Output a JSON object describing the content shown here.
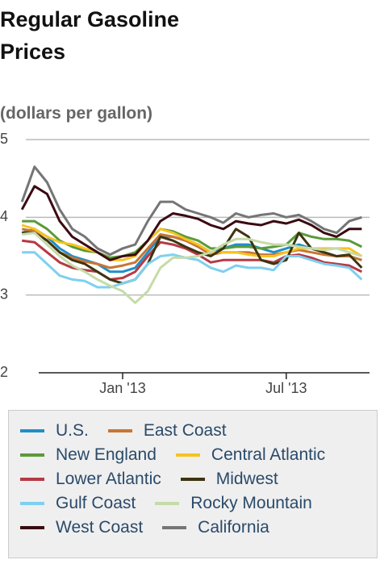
{
  "chart_data": {
    "type": "line",
    "title": "Regular Gasoline Prices",
    "subtitle": "(dollars per gallon)",
    "categories": [
      null,
      null,
      null,
      null,
      null,
      null,
      null,
      null,
      "Jan '13",
      null,
      null,
      null,
      null,
      null,
      null,
      null,
      null,
      null,
      null,
      null,
      null,
      "Jul '13",
      null,
      null,
      null,
      null,
      null,
      null
    ],
    "ylim": [
      2,
      5
    ],
    "yticks": [
      2,
      3,
      4,
      5
    ],
    "grid": true,
    "series": [
      {
        "name": "U.S.",
        "color": "#1f8fc8",
        "values": [
          3.8,
          3.85,
          3.75,
          3.6,
          3.5,
          3.45,
          3.4,
          3.3,
          3.3,
          3.35,
          3.55,
          3.75,
          3.75,
          3.7,
          3.65,
          3.55,
          3.6,
          3.65,
          3.65,
          3.6,
          3.55,
          3.6,
          3.65,
          3.6,
          3.55,
          3.5,
          3.5,
          3.45
        ]
      },
      {
        "name": "East Coast",
        "color": "#c87533",
        "values": [
          3.85,
          3.82,
          3.7,
          3.55,
          3.48,
          3.43,
          3.4,
          3.35,
          3.38,
          3.42,
          3.6,
          3.78,
          3.75,
          3.7,
          3.62,
          3.52,
          3.55,
          3.55,
          3.55,
          3.52,
          3.52,
          3.55,
          3.58,
          3.55,
          3.52,
          3.5,
          3.5,
          3.45
        ]
      },
      {
        "name": "New England",
        "color": "#5b9a3a",
        "values": [
          3.95,
          3.95,
          3.85,
          3.7,
          3.62,
          3.57,
          3.55,
          3.48,
          3.5,
          3.55,
          3.7,
          3.85,
          3.82,
          3.75,
          3.7,
          3.6,
          3.6,
          3.62,
          3.62,
          3.6,
          3.62,
          3.65,
          3.8,
          3.75,
          3.72,
          3.72,
          3.7,
          3.62
        ]
      },
      {
        "name": "Central Atlantic",
        "color": "#f6c320",
        "values": [
          3.9,
          3.85,
          3.75,
          3.68,
          3.65,
          3.6,
          3.55,
          3.45,
          3.45,
          3.5,
          3.7,
          3.85,
          3.8,
          3.72,
          3.65,
          3.55,
          3.55,
          3.55,
          3.52,
          3.5,
          3.5,
          3.55,
          3.6,
          3.6,
          3.6,
          3.6,
          3.6,
          3.5
        ]
      },
      {
        "name": "Lower Atlantic",
        "color": "#b53a45",
        "values": [
          3.7,
          3.68,
          3.55,
          3.42,
          3.35,
          3.32,
          3.3,
          3.2,
          3.22,
          3.3,
          3.5,
          3.68,
          3.65,
          3.6,
          3.52,
          3.42,
          3.45,
          3.45,
          3.45,
          3.45,
          3.42,
          3.5,
          3.52,
          3.48,
          3.42,
          3.4,
          3.38,
          3.3
        ]
      },
      {
        "name": "Midwest",
        "color": "#3d3411",
        "values": [
          3.8,
          3.8,
          3.7,
          3.55,
          3.45,
          3.4,
          3.3,
          3.2,
          3.15,
          3.2,
          3.4,
          3.75,
          3.7,
          3.62,
          3.55,
          3.5,
          3.6,
          3.85,
          3.75,
          3.45,
          3.4,
          3.45,
          3.8,
          3.6,
          3.55,
          3.5,
          3.52,
          3.35
        ]
      },
      {
        "name": "Gulf Coast",
        "color": "#7fd0f0",
        "values": [
          3.55,
          3.55,
          3.4,
          3.25,
          3.2,
          3.18,
          3.1,
          3.1,
          3.15,
          3.2,
          3.4,
          3.5,
          3.52,
          3.48,
          3.45,
          3.35,
          3.3,
          3.38,
          3.35,
          3.35,
          3.32,
          3.5,
          3.5,
          3.45,
          3.4,
          3.38,
          3.35,
          3.2
        ]
      },
      {
        "name": "Rocky Mountain",
        "color": "#c6dba8",
        "values": [
          3.78,
          3.8,
          3.65,
          3.5,
          3.38,
          3.3,
          3.2,
          3.12,
          3.05,
          2.9,
          3.05,
          3.35,
          3.48,
          3.48,
          3.5,
          3.55,
          3.65,
          3.72,
          3.72,
          3.68,
          3.65,
          3.65,
          3.62,
          3.6,
          3.58,
          3.6,
          3.55,
          3.5
        ]
      },
      {
        "name": "West Coast",
        "color": "#3a0a12",
        "values": [
          4.1,
          4.4,
          4.3,
          3.95,
          3.75,
          3.65,
          3.55,
          3.45,
          3.5,
          3.52,
          3.7,
          3.95,
          4.05,
          4.02,
          3.98,
          3.9,
          3.85,
          3.95,
          3.92,
          3.9,
          3.95,
          3.92,
          3.97,
          3.9,
          3.8,
          3.75,
          3.85,
          3.85
        ]
      },
      {
        "name": "California",
        "color": "#757575",
        "values": [
          4.2,
          4.65,
          4.45,
          4.1,
          3.85,
          3.75,
          3.6,
          3.52,
          3.6,
          3.65,
          3.95,
          4.2,
          4.2,
          4.1,
          4.05,
          4.0,
          3.93,
          4.05,
          4.0,
          4.03,
          4.05,
          4.0,
          4.03,
          3.95,
          3.85,
          3.8,
          3.95,
          4.0
        ]
      }
    ]
  }
}
